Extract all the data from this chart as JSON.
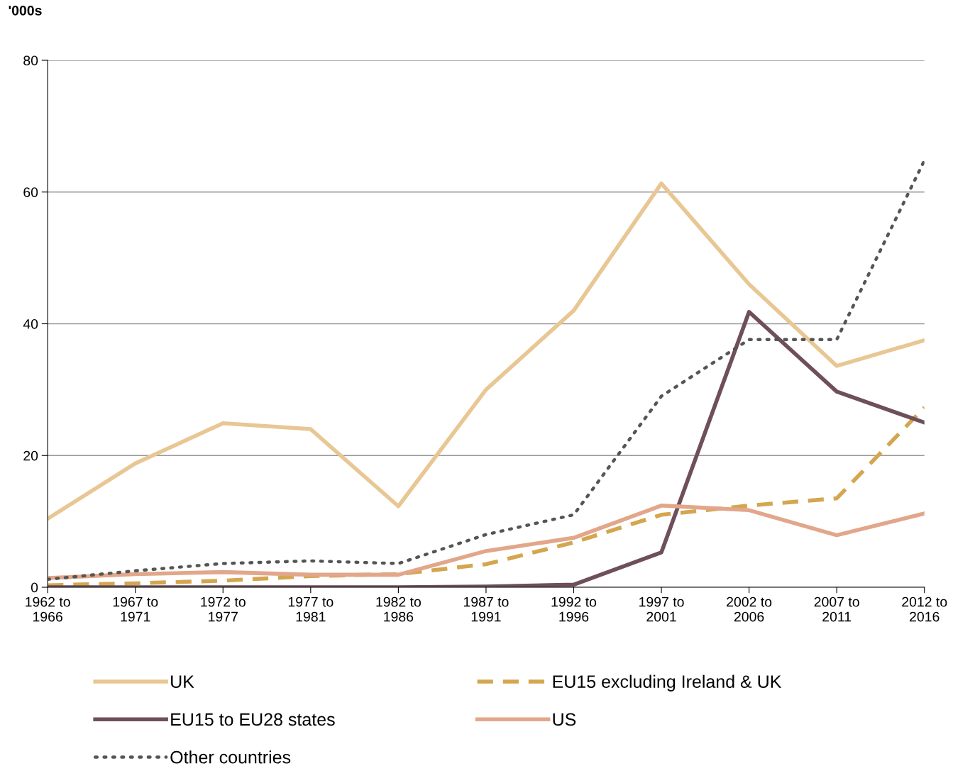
{
  "chart_data": {
    "type": "line",
    "ylabel": "'000s",
    "categories": [
      "1962 to\n1966",
      "1967 to\n1971",
      "1972 to\n1977",
      "1977 to\n1981",
      "1982 to\n1986",
      "1987 to\n1991",
      "1992 to\n1996",
      "1997 to\n2001",
      "2002 to\n2006",
      "2007 to\n2011",
      "2012 to\n2016"
    ],
    "series": [
      {
        "name": "UK",
        "color": "#e8c794",
        "line_style": "solid",
        "values": [
          10.4,
          18.8,
          24.9,
          24,
          12.3,
          30,
          42,
          61.3,
          46,
          33.6,
          37.5
        ]
      },
      {
        "name": "EU15 excluding Ireland & UK",
        "color": "#d4a650",
        "line_style": "dashed",
        "values": [
          0.3,
          0.6,
          1.0,
          1.7,
          2.0,
          3.5,
          6.8,
          11,
          12.4,
          13.5,
          27.3
        ]
      },
      {
        "name": "EU15 to EU28 states",
        "color": "#6e4f5a",
        "line_style": "solid",
        "values": [
          0,
          0,
          0,
          0,
          0,
          0.1,
          0.4,
          5.3,
          41.8,
          29.7,
          25
        ]
      },
      {
        "name": "US",
        "color": "#e2a68a",
        "line_style": "solid",
        "values": [
          1.4,
          2,
          2.3,
          1.9,
          1.9,
          5.5,
          7.5,
          12.4,
          11.7,
          7.9,
          11.2
        ]
      },
      {
        "name": "Other countries",
        "color": "#555555",
        "line_style": "dotted",
        "values": [
          1.2,
          2.5,
          3.6,
          4,
          3.6,
          8,
          11,
          29,
          37.6,
          37.6,
          64.8
        ]
      }
    ],
    "ylim": [
      0,
      80
    ],
    "yticks": [
      0,
      20,
      40,
      60,
      80
    ],
    "grid": "y",
    "legend": "bottom",
    "marker": "none"
  }
}
